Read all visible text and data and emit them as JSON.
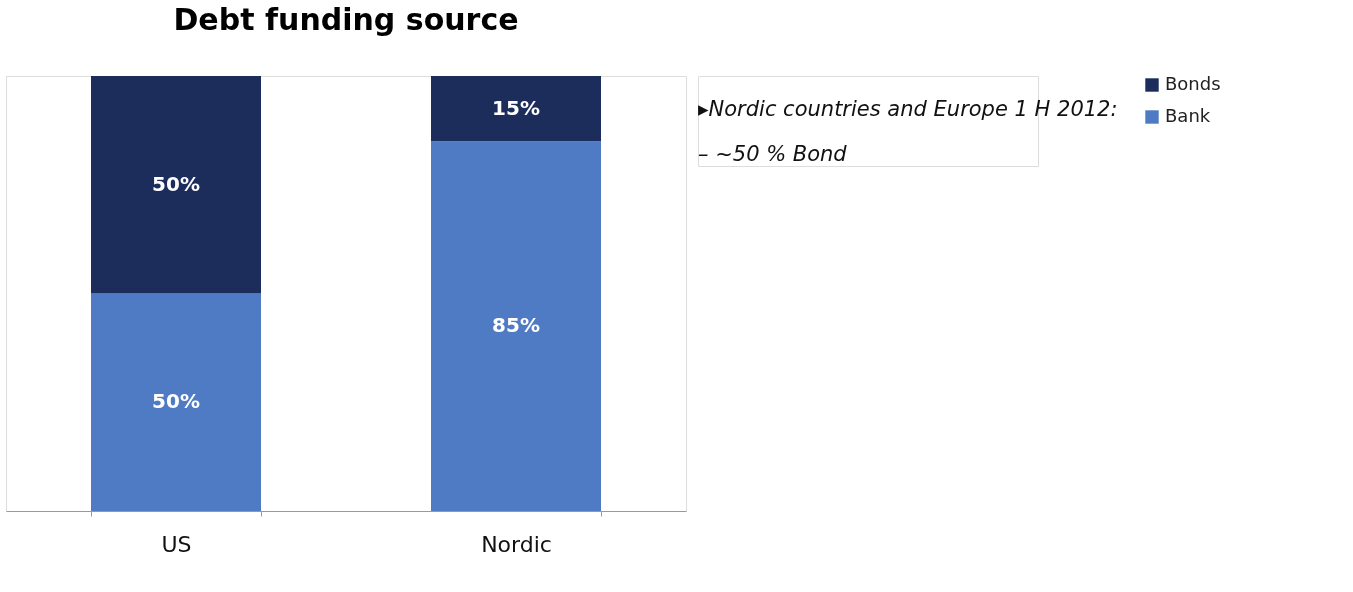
{
  "chart_data": {
    "type": "bar",
    "title": "Debt funding source",
    "categories": [
      "US",
      "Nordic"
    ],
    "stacked": true,
    "legend": "right",
    "grid": false,
    "series": [
      {
        "name": "Bank",
        "color": "#4f7bc4",
        "values": [
          50,
          85
        ],
        "value_labels": [
          "50%",
          "85%"
        ]
      },
      {
        "name": "Bonds",
        "color": "#1c2d5c",
        "values": [
          50,
          15
        ],
        "value_labels": [
          "50%",
          "15%"
        ]
      }
    ],
    "annotations": [
      "▸Nordic countries and Europe  1 H 2012:",
      "– ~50 % Bond"
    ]
  }
}
